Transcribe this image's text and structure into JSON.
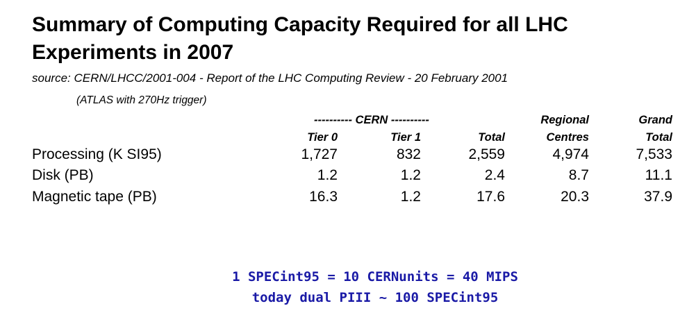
{
  "title": "Summary of Computing Capacity Required for all LHC Experiments in 2007",
  "source": "source: CERN/LHCC/2001-004 - Report of the LHC Computing Review - 20 February 2001",
  "note": "(ATLAS with 270Hz trigger)",
  "group_headers": {
    "cern": "----------  CERN  ----------",
    "regional_top": "Regional",
    "grand_top": "Grand"
  },
  "columns": [
    "Tier 0",
    "Tier 1",
    "Total",
    "Centres",
    "Total"
  ],
  "rows": [
    {
      "label": "Processing (K SI95)",
      "values": [
        "1,727",
        "832",
        "2,559",
        "4,974",
        "7,533"
      ]
    },
    {
      "label": "Disk (PB)",
      "values": [
        "1.2",
        "1.2",
        "2.4",
        "8.7",
        "11.1"
      ]
    },
    {
      "label": "Magnetic tape (PB)",
      "values": [
        "16.3",
        "1.2",
        "17.6",
        "20.3",
        "37.9"
      ]
    }
  ],
  "footer": {
    "line1": "1 SPECint95 = 10 CERNunits = 40 MIPS",
    "line2": "today dual PIII ~ 100 SPECint95",
    "color": "#1a1aa6"
  }
}
